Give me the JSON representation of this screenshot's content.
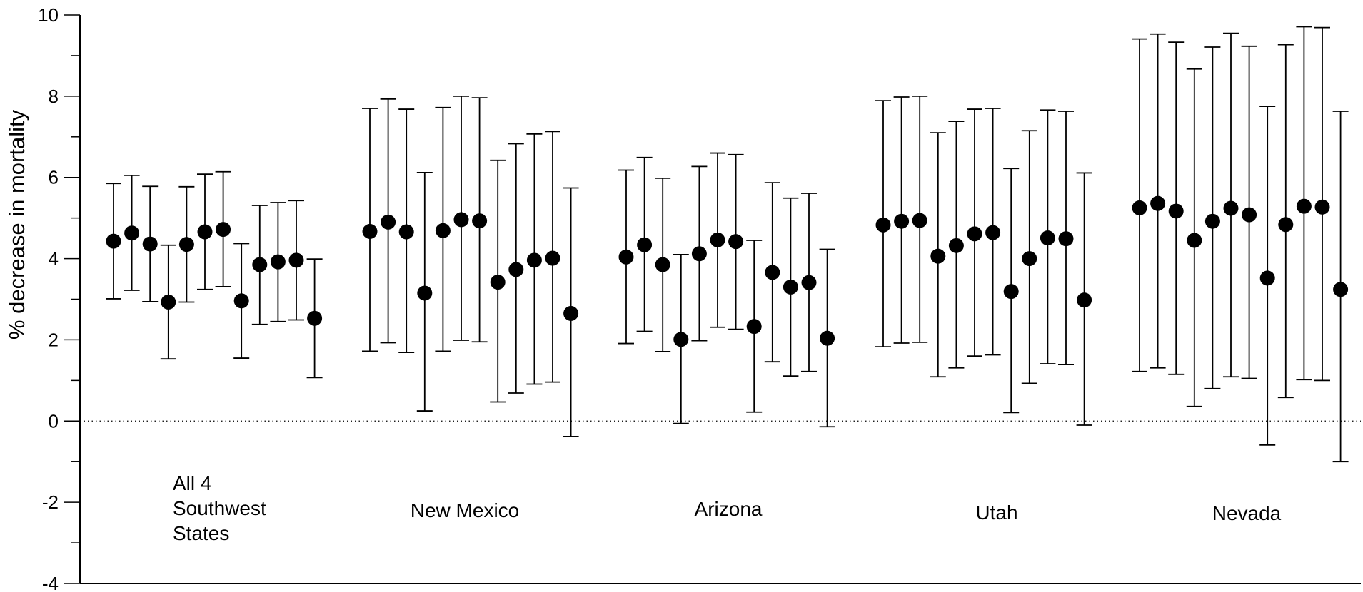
{
  "chart_data": {
    "type": "scatter",
    "title": "",
    "xlabel": "",
    "ylabel": "% decrease in mortality",
    "ylim": [
      -4,
      10
    ],
    "yticks": [
      -4,
      -2,
      0,
      2,
      4,
      6,
      8,
      10
    ],
    "yticks_minor": [
      -3,
      -1,
      1,
      3,
      5,
      7,
      9
    ],
    "reference_line": {
      "y": 0,
      "style": "dotted"
    },
    "marker_color": "#000000",
    "groups": [
      {
        "label_lines": [
          "All 4",
          "Southwest",
          "States"
        ],
        "points": [
          {
            "y": 4.43,
            "lo": 3.01,
            "hi": 5.85
          },
          {
            "y": 4.63,
            "lo": 3.22,
            "hi": 6.05
          },
          {
            "y": 4.36,
            "lo": 2.94,
            "hi": 5.78
          },
          {
            "y": 2.93,
            "lo": 1.53,
            "hi": 4.33
          },
          {
            "y": 4.35,
            "lo": 2.93,
            "hi": 5.77
          },
          {
            "y": 4.66,
            "lo": 3.24,
            "hi": 6.08
          },
          {
            "y": 4.72,
            "lo": 3.31,
            "hi": 6.14
          },
          {
            "y": 2.96,
            "lo": 1.55,
            "hi": 4.37
          },
          {
            "y": 3.85,
            "lo": 2.38,
            "hi": 5.31
          },
          {
            "y": 3.92,
            "lo": 2.45,
            "hi": 5.38
          },
          {
            "y": 3.96,
            "lo": 2.49,
            "hi": 5.43
          },
          {
            "y": 2.53,
            "lo": 1.07,
            "hi": 3.99
          }
        ]
      },
      {
        "label_lines": [
          "New Mexico"
        ],
        "points": [
          {
            "y": 4.67,
            "lo": 1.72,
            "hi": 7.7
          },
          {
            "y": 4.9,
            "lo": 1.93,
            "hi": 7.93
          },
          {
            "y": 4.66,
            "lo": 1.69,
            "hi": 7.68
          },
          {
            "y": 3.15,
            "lo": 0.25,
            "hi": 6.12
          },
          {
            "y": 4.69,
            "lo": 1.72,
            "hi": 7.72
          },
          {
            "y": 4.96,
            "lo": 1.99,
            "hi": 8.0
          },
          {
            "y": 4.93,
            "lo": 1.95,
            "hi": 7.96
          },
          {
            "y": 3.42,
            "lo": 0.47,
            "hi": 6.42
          },
          {
            "y": 3.73,
            "lo": 0.69,
            "hi": 6.83
          },
          {
            "y": 3.96,
            "lo": 0.91,
            "hi": 7.07
          },
          {
            "y": 4.01,
            "lo": 0.96,
            "hi": 7.13
          },
          {
            "y": 2.65,
            "lo": -0.38,
            "hi": 5.74
          }
        ]
      },
      {
        "label_lines": [
          "Arizona"
        ],
        "points": [
          {
            "y": 4.04,
            "lo": 1.91,
            "hi": 6.18
          },
          {
            "y": 4.34,
            "lo": 2.21,
            "hi": 6.49
          },
          {
            "y": 3.85,
            "lo": 1.71,
            "hi": 5.98
          },
          {
            "y": 2.01,
            "lo": -0.06,
            "hi": 4.1
          },
          {
            "y": 4.12,
            "lo": 1.98,
            "hi": 6.27
          },
          {
            "y": 4.46,
            "lo": 2.31,
            "hi": 6.6
          },
          {
            "y": 4.42,
            "lo": 2.26,
            "hi": 6.56
          },
          {
            "y": 2.33,
            "lo": 0.22,
            "hi": 4.45
          },
          {
            "y": 3.66,
            "lo": 1.46,
            "hi": 5.87
          },
          {
            "y": 3.3,
            "lo": 1.11,
            "hi": 5.49
          },
          {
            "y": 3.41,
            "lo": 1.22,
            "hi": 5.61
          },
          {
            "y": 2.04,
            "lo": -0.14,
            "hi": 4.23
          }
        ]
      },
      {
        "label_lines": [
          "Utah"
        ],
        "points": [
          {
            "y": 4.83,
            "lo": 1.83,
            "hi": 7.89
          },
          {
            "y": 4.92,
            "lo": 1.92,
            "hi": 7.98
          },
          {
            "y": 4.94,
            "lo": 1.94,
            "hi": 8.0
          },
          {
            "y": 4.06,
            "lo": 1.09,
            "hi": 7.1
          },
          {
            "y": 4.32,
            "lo": 1.31,
            "hi": 7.38
          },
          {
            "y": 4.61,
            "lo": 1.6,
            "hi": 7.68
          },
          {
            "y": 4.64,
            "lo": 1.63,
            "hi": 7.7
          },
          {
            "y": 3.19,
            "lo": 0.21,
            "hi": 6.22
          },
          {
            "y": 4.0,
            "lo": 0.93,
            "hi": 7.15
          },
          {
            "y": 4.51,
            "lo": 1.41,
            "hi": 7.66
          },
          {
            "y": 4.49,
            "lo": 1.39,
            "hi": 7.63
          },
          {
            "y": 2.98,
            "lo": -0.1,
            "hi": 6.11
          }
        ]
      },
      {
        "label_lines": [
          "Nevada"
        ],
        "points": [
          {
            "y": 5.25,
            "lo": 1.22,
            "hi": 9.41
          },
          {
            "y": 5.36,
            "lo": 1.31,
            "hi": 9.53
          },
          {
            "y": 5.17,
            "lo": 1.15,
            "hi": 9.33
          },
          {
            "y": 4.45,
            "lo": 0.36,
            "hi": 8.67
          },
          {
            "y": 4.92,
            "lo": 0.8,
            "hi": 9.21
          },
          {
            "y": 5.24,
            "lo": 1.09,
            "hi": 9.55
          },
          {
            "y": 5.08,
            "lo": 1.05,
            "hi": 9.23
          },
          {
            "y": 3.52,
            "lo": -0.59,
            "hi": 7.75
          },
          {
            "y": 4.84,
            "lo": 0.58,
            "hi": 9.27
          },
          {
            "y": 5.29,
            "lo": 1.02,
            "hi": 9.71
          },
          {
            "y": 5.27,
            "lo": 1.0,
            "hi": 9.69
          },
          {
            "y": 3.24,
            "lo": -1.0,
            "hi": 7.63
          }
        ]
      }
    ]
  }
}
